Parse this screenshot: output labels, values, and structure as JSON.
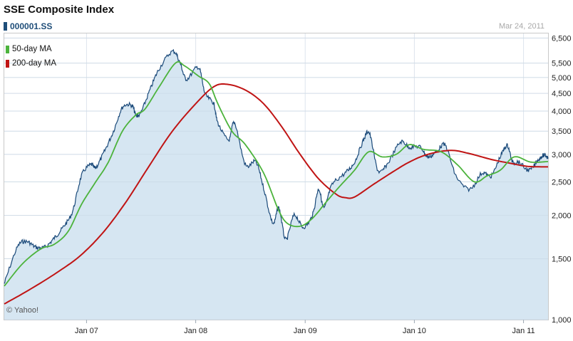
{
  "header": {
    "title": "SSE Composite Index",
    "ticker": "000001.SS",
    "as_of": "Mar 24, 2011",
    "credit": "© Yahoo!"
  },
  "colors": {
    "price_line": "#1b4a7a",
    "price_fill": "#d6e6f2",
    "ma50": "#4cb33c",
    "ma200": "#c01414",
    "grid": "#dde4ec"
  },
  "chart_data": {
    "type": "line",
    "title": "SSE Composite Index",
    "xlabel": "",
    "ylabel": "",
    "y_scale": "log",
    "ylim": [
      1000,
      6700
    ],
    "xlim": [
      "2006-04-01",
      "2011-03-24"
    ],
    "grid": true,
    "legend_position": "top-left",
    "x_ticks": [
      {
        "label": "Jan 07",
        "date": "2007-01-01"
      },
      {
        "label": "Jan 08",
        "date": "2008-01-01"
      },
      {
        "label": "Jan 09",
        "date": "2009-01-01"
      },
      {
        "label": "Jan 10",
        "date": "2010-01-01"
      },
      {
        "label": "Jan 11",
        "date": "2011-01-01"
      }
    ],
    "y_ticks": [
      {
        "label": "1,000",
        "value": 1000
      },
      {
        "label": "1,500",
        "value": 1500
      },
      {
        "label": "2,000",
        "value": 2000
      },
      {
        "label": "2,500",
        "value": 2500
      },
      {
        "label": "3,000",
        "value": 3000
      },
      {
        "label": "3,500",
        "value": 3500
      },
      {
        "label": "4,000",
        "value": 4000
      },
      {
        "label": "4,500",
        "value": 4500
      },
      {
        "label": "5,000",
        "value": 5000
      },
      {
        "label": "5,500",
        "value": 5500
      },
      {
        "label": "6,500",
        "value": 6500
      }
    ],
    "series": [
      {
        "name": "000001.SS",
        "values": [
          [
            "2006-04-01",
            1270
          ],
          [
            "2006-05-15",
            1620
          ],
          [
            "2006-06-15",
            1680
          ],
          [
            "2006-07-15",
            1620
          ],
          [
            "2006-08-15",
            1620
          ],
          [
            "2006-09-15",
            1720
          ],
          [
            "2006-10-15",
            1850
          ],
          [
            "2006-11-15",
            2050
          ],
          [
            "2006-12-15",
            2600
          ],
          [
            "2007-01-15",
            2800
          ],
          [
            "2007-02-01",
            2750
          ],
          [
            "2007-03-01",
            3050
          ],
          [
            "2007-04-01",
            3500
          ],
          [
            "2007-05-01",
            4100
          ],
          [
            "2007-06-01",
            4150
          ],
          [
            "2007-06-15",
            3900
          ],
          [
            "2007-07-01",
            3950
          ],
          [
            "2007-08-01",
            4600
          ],
          [
            "2007-09-01",
            5300
          ],
          [
            "2007-10-16",
            5950
          ],
          [
            "2007-11-10",
            5500
          ],
          [
            "2007-12-01",
            4950
          ],
          [
            "2008-01-10",
            5350
          ],
          [
            "2008-02-01",
            4500
          ],
          [
            "2008-03-01",
            4200
          ],
          [
            "2008-03-15",
            3700
          ],
          [
            "2008-04-20",
            3300
          ],
          [
            "2008-05-10",
            3700
          ],
          [
            "2008-06-15",
            2800
          ],
          [
            "2008-07-20",
            2850
          ],
          [
            "2008-08-15",
            2400
          ],
          [
            "2008-09-15",
            1900
          ],
          [
            "2008-10-05",
            2100
          ],
          [
            "2008-10-28",
            1700
          ],
          [
            "2008-11-25",
            2000
          ],
          [
            "2008-12-25",
            1850
          ],
          [
            "2009-01-25",
            2000
          ],
          [
            "2009-02-15",
            2380
          ],
          [
            "2009-03-05",
            2100
          ],
          [
            "2009-04-01",
            2450
          ],
          [
            "2009-05-15",
            2650
          ],
          [
            "2009-06-15",
            2850
          ],
          [
            "2009-07-15",
            3300
          ],
          [
            "2009-08-04",
            3450
          ],
          [
            "2009-09-01",
            2700
          ],
          [
            "2009-10-01",
            2800
          ],
          [
            "2009-11-15",
            3250
          ],
          [
            "2009-12-15",
            3150
          ],
          [
            "2010-01-20",
            3150
          ],
          [
            "2010-02-15",
            2950
          ],
          [
            "2010-03-15",
            3050
          ],
          [
            "2010-04-15",
            3180
          ],
          [
            "2010-05-20",
            2600
          ],
          [
            "2010-07-05",
            2380
          ],
          [
            "2010-08-15",
            2650
          ],
          [
            "2010-09-15",
            2600
          ],
          [
            "2010-10-15",
            2950
          ],
          [
            "2010-11-08",
            3180
          ],
          [
            "2010-11-25",
            2850
          ],
          [
            "2010-12-15",
            2850
          ],
          [
            "2011-01-20",
            2700
          ],
          [
            "2011-02-20",
            2900
          ],
          [
            "2011-03-10",
            2980
          ],
          [
            "2011-03-24",
            2940
          ]
        ]
      },
      {
        "name": "50-day MA",
        "values": [
          [
            "2006-04-01",
            1250
          ],
          [
            "2006-06-01",
            1450
          ],
          [
            "2006-08-01",
            1600
          ],
          [
            "2006-09-15",
            1650
          ],
          [
            "2006-11-01",
            1800
          ],
          [
            "2006-12-15",
            2150
          ],
          [
            "2007-02-01",
            2500
          ],
          [
            "2007-03-15",
            2850
          ],
          [
            "2007-05-01",
            3500
          ],
          [
            "2007-06-15",
            3900
          ],
          [
            "2007-07-15",
            4050
          ],
          [
            "2007-09-01",
            4700
          ],
          [
            "2007-10-25",
            5500
          ],
          [
            "2007-11-25",
            5400
          ],
          [
            "2008-01-10",
            5050
          ],
          [
            "2008-02-15",
            4800
          ],
          [
            "2008-03-15",
            4200
          ],
          [
            "2008-05-01",
            3500
          ],
          [
            "2008-06-15",
            3200
          ],
          [
            "2008-08-15",
            2650
          ],
          [
            "2008-10-01",
            2100
          ],
          [
            "2008-11-01",
            1900
          ],
          [
            "2008-12-15",
            1860
          ],
          [
            "2009-01-25",
            1960
          ],
          [
            "2009-03-15",
            2200
          ],
          [
            "2009-05-01",
            2450
          ],
          [
            "2009-06-15",
            2700
          ],
          [
            "2009-08-01",
            3050
          ],
          [
            "2009-09-15",
            2950
          ],
          [
            "2009-11-01",
            3000
          ],
          [
            "2009-12-15",
            3200
          ],
          [
            "2010-02-01",
            3100
          ],
          [
            "2010-04-01",
            3050
          ],
          [
            "2010-05-25",
            2800
          ],
          [
            "2010-07-20",
            2500
          ],
          [
            "2010-09-01",
            2600
          ],
          [
            "2010-10-15",
            2700
          ],
          [
            "2010-12-01",
            2950
          ],
          [
            "2011-01-25",
            2850
          ],
          [
            "2011-03-24",
            2860
          ]
        ]
      },
      {
        "name": "200-day MA",
        "values": [
          [
            "2006-04-01",
            1110
          ],
          [
            "2006-07-01",
            1230
          ],
          [
            "2006-10-01",
            1380
          ],
          [
            "2006-12-15",
            1540
          ],
          [
            "2007-03-01",
            1800
          ],
          [
            "2007-05-15",
            2200
          ],
          [
            "2007-08-01",
            2800
          ],
          [
            "2007-10-15",
            3500
          ],
          [
            "2008-01-01",
            4200
          ],
          [
            "2008-03-01",
            4700
          ],
          [
            "2008-04-15",
            4780
          ],
          [
            "2008-06-15",
            4600
          ],
          [
            "2008-08-15",
            4200
          ],
          [
            "2008-10-15",
            3600
          ],
          [
            "2008-12-15",
            3000
          ],
          [
            "2009-02-15",
            2550
          ],
          [
            "2009-04-15",
            2300
          ],
          [
            "2009-05-15",
            2250
          ],
          [
            "2009-06-15",
            2260
          ],
          [
            "2009-08-15",
            2450
          ],
          [
            "2009-10-15",
            2650
          ],
          [
            "2009-12-15",
            2850
          ],
          [
            "2010-02-15",
            3000
          ],
          [
            "2010-05-01",
            3080
          ],
          [
            "2010-07-01",
            3020
          ],
          [
            "2010-09-15",
            2900
          ],
          [
            "2010-11-15",
            2830
          ],
          [
            "2011-01-15",
            2770
          ],
          [
            "2011-03-24",
            2760
          ]
        ]
      }
    ]
  }
}
